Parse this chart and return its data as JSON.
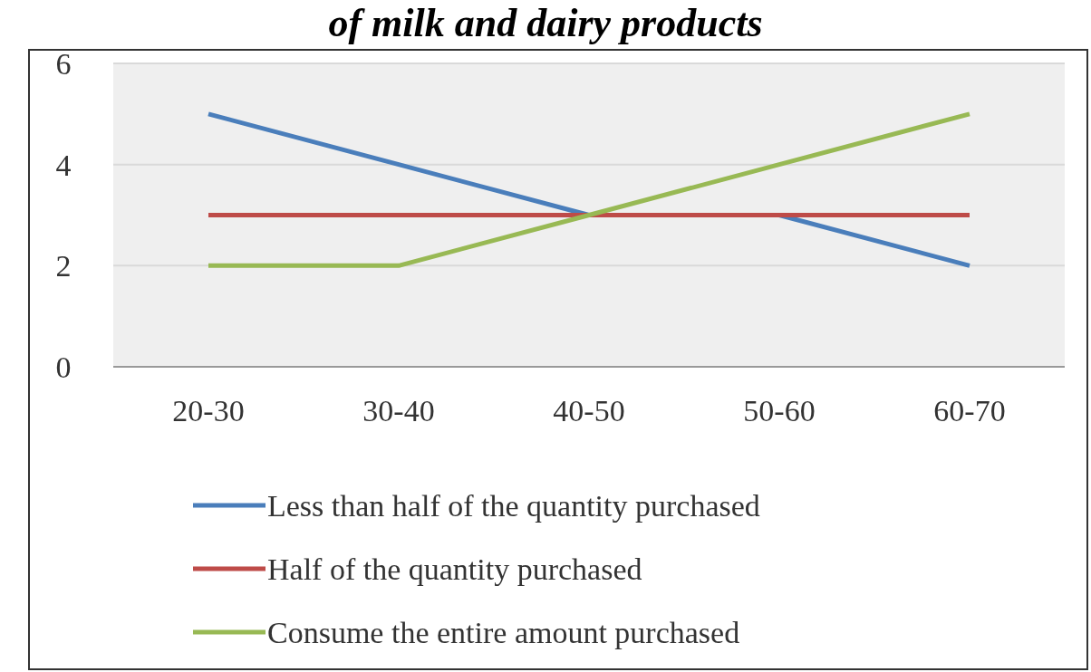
{
  "chart_data": {
    "type": "line",
    "title": "of milk and dairy products",
    "categories": [
      "20-30",
      "30-40",
      "40-50",
      "50-60",
      "60-70"
    ],
    "series": [
      {
        "name": "Less than half of the quantity purchased",
        "color": "#4a7ebb",
        "values": [
          5,
          4,
          3,
          3,
          2
        ]
      },
      {
        "name": "Half of the quantity purchased",
        "color": "#be4b48",
        "values": [
          3,
          3,
          3,
          3,
          3
        ]
      },
      {
        "name": "Consume the entire amount purchased",
        "color": "#98b954",
        "values": [
          2,
          2,
          3,
          4,
          5
        ]
      }
    ],
    "ylim": [
      0,
      6
    ],
    "yticks": [
      0,
      2,
      4,
      6
    ],
    "grid": "y",
    "legend": "bottom",
    "marker": "none",
    "line_style": "solid"
  }
}
